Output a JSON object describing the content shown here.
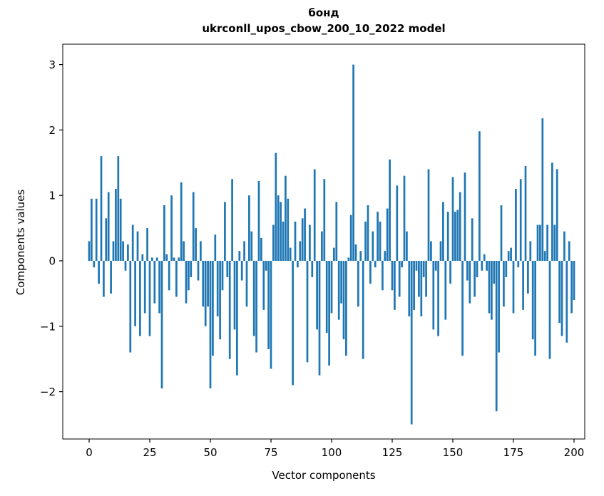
{
  "title": {
    "line1": "бонд",
    "line2": "ukrconll_upos_cbow_200_10_2022 model"
  },
  "axes": {
    "xlabel": "Vector components",
    "ylabel": "Components values"
  },
  "colors": {
    "bar": "#1f77b4",
    "spine": "#000000",
    "background": "#ffffff"
  },
  "chart_data": {
    "type": "bar",
    "title": "бонд\nukrconll_upos_cbow_200_10_2022 model",
    "xlabel": "Vector components",
    "ylabel": "Components values",
    "grid": false,
    "legend": "none",
    "x_ticks": [
      0,
      25,
      50,
      75,
      100,
      125,
      150,
      175,
      200
    ],
    "y_ticks": [
      -2,
      -1,
      0,
      1,
      2,
      3
    ],
    "xlim": [
      -10.9,
      204.4
    ],
    "ylim": [
      -2.76,
      3.29
    ],
    "x_start": 0,
    "n_points": 201,
    "values": [
      0.3,
      0.95,
      -0.1,
      0.95,
      -0.35,
      1.6,
      -0.55,
      0.65,
      1.05,
      -0.5,
      0.3,
      1.1,
      1.6,
      0.95,
      0.3,
      -0.15,
      0.25,
      -1.4,
      0.55,
      -1.0,
      0.45,
      -1.15,
      0.1,
      -0.8,
      0.5,
      -1.15,
      0.05,
      -0.65,
      0.05,
      -0.8,
      -1.95,
      0.85,
      0.1,
      -0.45,
      1.0,
      0.05,
      -0.55,
      0.05,
      1.2,
      0.3,
      -0.65,
      -0.45,
      -0.25,
      1.05,
      0.5,
      -0.3,
      0.3,
      -0.7,
      -1.0,
      -0.7,
      -1.95,
      -1.45,
      0.4,
      -0.85,
      -1.2,
      -0.45,
      0.9,
      -0.25,
      -1.5,
      1.25,
      -1.05,
      -1.75,
      0.15,
      -0.3,
      0.3,
      -0.7,
      1.0,
      0.45,
      -1.15,
      -1.4,
      1.22,
      0.35,
      -0.75,
      -0.15,
      -1.35,
      -1.65,
      0.55,
      1.65,
      1.0,
      0.9,
      0.6,
      1.3,
      0.95,
      0.2,
      -1.9,
      0.6,
      -0.1,
      0.3,
      0.65,
      0.8,
      -1.55,
      0.55,
      -0.25,
      1.4,
      -1.05,
      -1.75,
      0.45,
      1.25,
      -1.1,
      -1.6,
      -0.8,
      0.2,
      0.9,
      -0.9,
      -0.65,
      -1.2,
      -1.45,
      0.05,
      0.7,
      3.0,
      0.25,
      -0.7,
      0.15,
      -1.5,
      0.6,
      0.85,
      -0.35,
      0.45,
      -0.1,
      0.75,
      0.6,
      -0.45,
      0.15,
      0.8,
      1.55,
      -0.45,
      -0.75,
      1.15,
      -0.55,
      -0.1,
      1.3,
      0.45,
      -0.85,
      -2.5,
      -0.75,
      -0.15,
      -0.55,
      -0.85,
      -0.25,
      -0.55,
      1.4,
      0.3,
      -1.05,
      -0.15,
      -1.15,
      0.3,
      0.9,
      -0.9,
      0.75,
      -0.35,
      1.28,
      0.75,
      0.78,
      1.05,
      -1.45,
      1.35,
      -0.3,
      -0.65,
      0.65,
      -0.55,
      -0.25,
      1.98,
      -0.15,
      0.1,
      -0.15,
      -0.8,
      -0.9,
      -0.35,
      -2.3,
      -1.4,
      0.85,
      -0.7,
      -0.25,
      0.15,
      0.2,
      -0.8,
      1.1,
      -0.1,
      1.25,
      -0.75,
      1.45,
      -0.5,
      0.3,
      -1.2,
      -1.45,
      0.55,
      0.55,
      2.18,
      0.15,
      0.55,
      -1.5,
      1.5,
      0.55,
      1.4,
      -0.95,
      -1.15,
      0.45,
      -1.25,
      0.3,
      -0.8,
      -0.6
    ]
  }
}
